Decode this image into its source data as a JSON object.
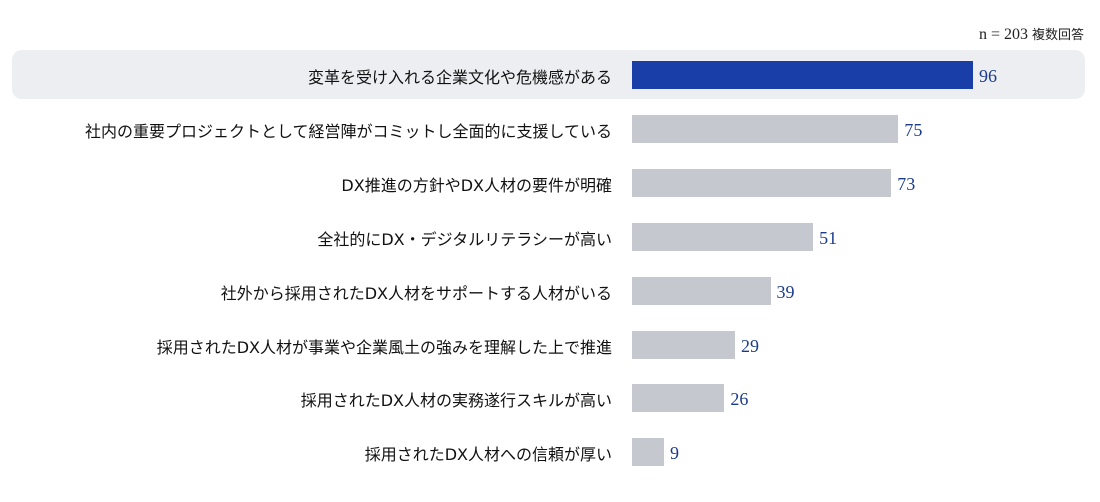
{
  "note": {
    "n": "n = 203",
    "label": "複数回答"
  },
  "colors": {
    "highlight_bar": "#1a3ea8",
    "bar": "#c6c8cf",
    "highlight_bg": "#eceef2",
    "value_text": "#1c3b8a"
  },
  "chart_data": {
    "type": "bar",
    "orientation": "horizontal",
    "categories": [
      "変革を受け入れる企業文化や危機感がある",
      "社内の重要プロジェクトとして経営陣がコミットし全面的に支援している",
      "DX推進の方針やDX人材の要件が明確",
      "全社的にDX・デジタルリテラシーが高い",
      "社外から採用されたDX人材をサポートする人材がいる",
      "採用されたDX人材が事業や企業風土の強みを理解した上で推進",
      "採用されたDX人材の実務遂行スキルが高い",
      "採用されたDX人材への信頼が厚い"
    ],
    "values": [
      96,
      75,
      73,
      51,
      39,
      29,
      26,
      9
    ],
    "highlighted_index": 0,
    "xlim": [
      0,
      100
    ],
    "grid": false
  }
}
